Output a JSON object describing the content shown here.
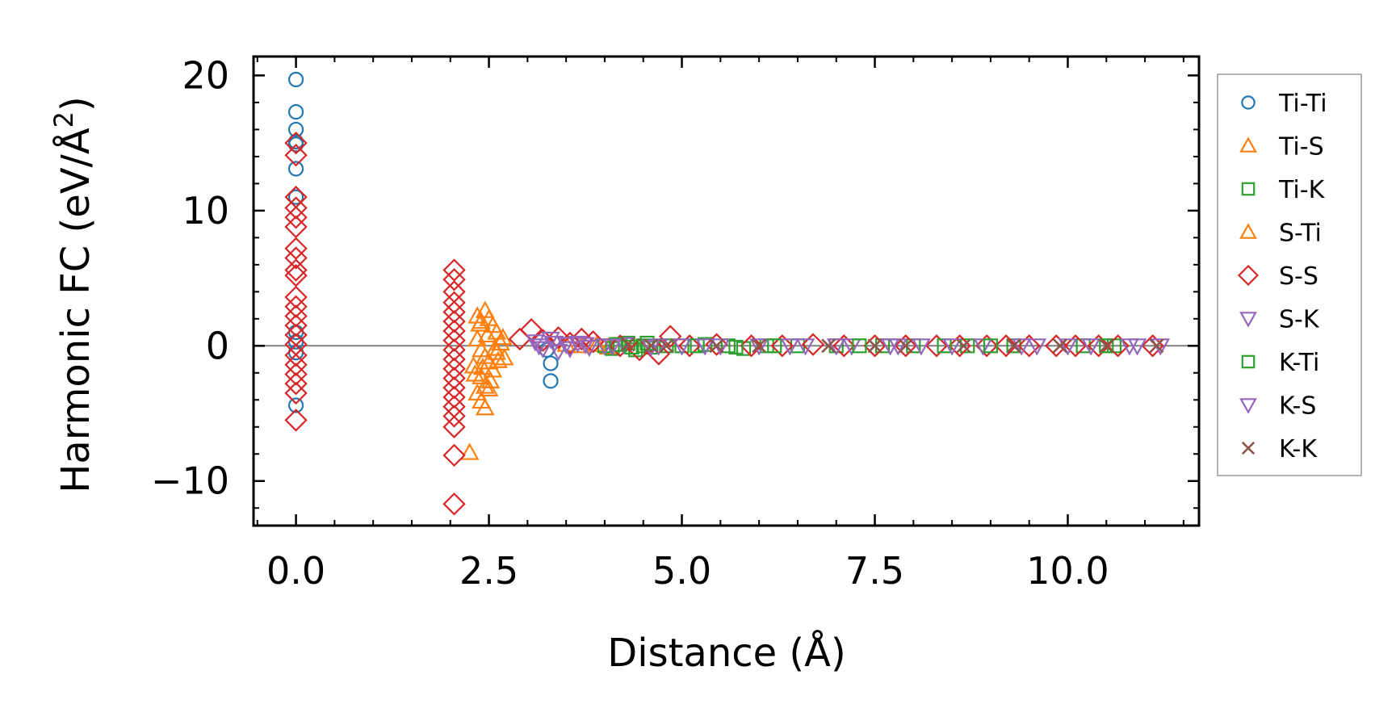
{
  "chart_data": {
    "type": "scatter",
    "xlabel": "Distance (Å)",
    "ylabel_prefix": "Harmonic FC (eV/Å",
    "ylabel_sup": "2",
    "ylabel_suffix": ")",
    "xlim": [
      -0.55,
      11.7
    ],
    "ylim": [
      -13.3,
      21.4
    ],
    "xticks": [
      0.0,
      2.5,
      5.0,
      7.5,
      10.0
    ],
    "xtick_labels": [
      "0.0",
      "2.5",
      "5.0",
      "7.5",
      "10.0"
    ],
    "yticks": [
      -10,
      0,
      10,
      20
    ],
    "ytick_labels": [
      "−10",
      "0",
      "10",
      "20"
    ],
    "zero_line": 0,
    "legend_position": "right, outside",
    "series": [
      {
        "name": "Ti-Ti",
        "marker": "circle",
        "color": "#1f77b4",
        "points": [
          [
            0,
            19.7
          ],
          [
            0,
            17.3
          ],
          [
            0,
            16.0
          ],
          [
            0,
            15.1
          ],
          [
            0,
            14.9
          ],
          [
            0,
            13.1
          ],
          [
            0,
            11.0
          ],
          [
            0,
            1.0
          ],
          [
            0,
            0.3
          ],
          [
            0,
            -0.5
          ],
          [
            0,
            -4.4
          ],
          [
            3.3,
            -1.3
          ],
          [
            3.3,
            -2.6
          ],
          [
            3.25,
            -0.3
          ]
        ]
      },
      {
        "name": "Ti-S",
        "marker": "triangle-up",
        "color": "#ff7f0e",
        "points": [
          [
            2.35,
            2.2
          ],
          [
            2.4,
            1.8
          ],
          [
            2.45,
            2.6
          ],
          [
            2.5,
            2.0
          ],
          [
            2.55,
            1.5
          ],
          [
            2.6,
            1.0
          ],
          [
            2.35,
            0.5
          ],
          [
            2.4,
            -0.3
          ],
          [
            2.45,
            -0.8
          ],
          [
            2.5,
            -1.2
          ],
          [
            2.55,
            -1.8
          ],
          [
            2.4,
            -2.3
          ],
          [
            2.45,
            -3.0
          ],
          [
            2.5,
            -3.2
          ],
          [
            2.35,
            -3.5
          ],
          [
            2.4,
            -4.1
          ],
          [
            2.45,
            -4.6
          ],
          [
            2.3,
            -1.5
          ],
          [
            2.6,
            -0.5
          ],
          [
            2.65,
            0.2
          ],
          [
            2.7,
            -0.9
          ],
          [
            2.25,
            -7.9
          ],
          [
            3.9,
            0.1
          ],
          [
            4.05,
            -0.1
          ]
        ]
      },
      {
        "name": "Ti-K",
        "marker": "square",
        "color": "#2ca02c",
        "points": [
          [
            4.0,
            0.0
          ],
          [
            4.1,
            -0.2
          ],
          [
            4.2,
            0.1
          ],
          [
            4.3,
            0.2
          ],
          [
            4.4,
            -0.3
          ],
          [
            4.5,
            0.0
          ],
          [
            4.6,
            -0.1
          ],
          [
            4.8,
            0.0
          ],
          [
            5.0,
            0.0
          ],
          [
            5.3,
            0.1
          ],
          [
            5.6,
            0.0
          ],
          [
            5.8,
            -0.2
          ],
          [
            6.1,
            0.0
          ],
          [
            6.5,
            0.0
          ],
          [
            7.0,
            0.0
          ],
          [
            7.6,
            0.0
          ],
          [
            8.0,
            0.0
          ],
          [
            8.7,
            0.0
          ],
          [
            9.3,
            0.0
          ],
          [
            10.2,
            0.0
          ],
          [
            10.6,
            0.0
          ]
        ]
      },
      {
        "name": "S-Ti",
        "marker": "triangle-up",
        "color": "#ff7f0e",
        "points": [
          [
            2.38,
            1.6
          ],
          [
            2.48,
            0.8
          ],
          [
            2.58,
            -0.2
          ],
          [
            2.42,
            -1.6
          ],
          [
            2.52,
            -2.6
          ],
          [
            2.62,
            -1.1
          ],
          [
            2.32,
            -2.1
          ],
          [
            2.68,
            0.6
          ],
          [
            3.5,
            0.1
          ],
          [
            3.7,
            0.0
          ]
        ]
      },
      {
        "name": "S-S",
        "marker": "diamond",
        "color": "#d62728",
        "points": [
          [
            0,
            15.0
          ],
          [
            0,
            14.1
          ],
          [
            0,
            11.0
          ],
          [
            0,
            10.2
          ],
          [
            0,
            9.5
          ],
          [
            0,
            8.8
          ],
          [
            0,
            7.2
          ],
          [
            0,
            6.5
          ],
          [
            0,
            5.6
          ],
          [
            0,
            5.2
          ],
          [
            0,
            3.6
          ],
          [
            0,
            2.9
          ],
          [
            0,
            2.2
          ],
          [
            0,
            1.5
          ],
          [
            0,
            0.8
          ],
          [
            0,
            0.1
          ],
          [
            0,
            -0.7
          ],
          [
            0,
            -1.4
          ],
          [
            0,
            -2.1
          ],
          [
            0,
            -2.8
          ],
          [
            0,
            -3.5
          ],
          [
            0,
            -5.5
          ],
          [
            2.05,
            5.6
          ],
          [
            2.05,
            4.9
          ],
          [
            2.05,
            4.0
          ],
          [
            2.05,
            3.2
          ],
          [
            2.05,
            2.5
          ],
          [
            2.05,
            1.8
          ],
          [
            2.05,
            1.1
          ],
          [
            2.05,
            0.4
          ],
          [
            2.05,
            -0.3
          ],
          [
            2.05,
            -1.0
          ],
          [
            2.05,
            -1.7
          ],
          [
            2.05,
            -2.4
          ],
          [
            2.05,
            -3.1
          ],
          [
            2.05,
            -3.8
          ],
          [
            2.05,
            -4.5
          ],
          [
            2.05,
            -5.2
          ],
          [
            2.05,
            -6.0
          ],
          [
            2.05,
            -8.1
          ],
          [
            2.05,
            -11.7
          ],
          [
            2.9,
            0.5
          ],
          [
            3.05,
            1.2
          ],
          [
            3.2,
            0.4
          ],
          [
            3.4,
            0.6
          ],
          [
            3.55,
            0.2
          ],
          [
            3.7,
            0.5
          ],
          [
            3.85,
            0.3
          ],
          [
            4.2,
            0.0
          ],
          [
            4.45,
            -0.3
          ],
          [
            4.7,
            -0.6
          ],
          [
            4.85,
            0.7
          ],
          [
            5.1,
            0.0
          ],
          [
            5.45,
            0.1
          ],
          [
            5.9,
            0.0
          ],
          [
            6.3,
            0.0
          ],
          [
            6.7,
            0.1
          ],
          [
            7.1,
            0.0
          ],
          [
            7.5,
            0.0
          ],
          [
            7.9,
            0.0
          ],
          [
            8.3,
            0.0
          ],
          [
            8.6,
            0.0
          ],
          [
            8.95,
            0.0
          ],
          [
            9.2,
            0.0
          ],
          [
            9.5,
            0.0
          ],
          [
            9.85,
            0.0
          ],
          [
            10.1,
            0.0
          ],
          [
            10.4,
            0.0
          ],
          [
            10.65,
            0.0
          ],
          [
            11.1,
            0.0
          ]
        ]
      },
      {
        "name": "S-K",
        "marker": "triangle-down",
        "color": "#9467bd",
        "points": [
          [
            3.1,
            0.3
          ],
          [
            3.2,
            -0.2
          ],
          [
            3.3,
            0.5
          ],
          [
            3.4,
            -0.4
          ],
          [
            3.5,
            0.1
          ],
          [
            3.65,
            0.2
          ],
          [
            3.8,
            -0.1
          ],
          [
            4.0,
            0.0
          ],
          [
            4.25,
            0.1
          ],
          [
            4.6,
            -0.1
          ],
          [
            5.0,
            0.0
          ],
          [
            5.5,
            0.0
          ],
          [
            6.0,
            0.0
          ],
          [
            6.6,
            0.0
          ],
          [
            7.2,
            0.0
          ],
          [
            7.7,
            0.0
          ],
          [
            8.1,
            0.0
          ],
          [
            8.9,
            0.0
          ],
          [
            9.6,
            0.0
          ],
          [
            10.3,
            0.0
          ],
          [
            10.9,
            0.0
          ]
        ]
      },
      {
        "name": "K-Ti",
        "marker": "square",
        "color": "#2ca02c",
        "points": [
          [
            4.15,
            0.1
          ],
          [
            4.35,
            -0.1
          ],
          [
            4.55,
            0.2
          ],
          [
            5.2,
            0.0
          ],
          [
            5.7,
            -0.1
          ],
          [
            6.2,
            0.0
          ],
          [
            7.3,
            0.0
          ],
          [
            8.4,
            0.0
          ],
          [
            9.0,
            0.0
          ],
          [
            10.5,
            0.0
          ]
        ]
      },
      {
        "name": "K-S",
        "marker": "triangle-down",
        "color": "#9467bd",
        "points": [
          [
            3.15,
            0.0
          ],
          [
            3.35,
            0.2
          ],
          [
            3.55,
            -0.2
          ],
          [
            3.75,
            0.1
          ],
          [
            4.1,
            0.0
          ],
          [
            4.7,
            0.0
          ],
          [
            5.3,
            0.0
          ],
          [
            6.4,
            0.0
          ],
          [
            7.0,
            0.0
          ],
          [
            7.8,
            0.0
          ],
          [
            8.5,
            0.0
          ],
          [
            9.4,
            0.0
          ],
          [
            10.0,
            0.0
          ],
          [
            10.8,
            0.0
          ],
          [
            11.2,
            0.0
          ]
        ]
      },
      {
        "name": "K-K",
        "marker": "x",
        "color": "#8c564b",
        "points": [
          [
            4.3,
            0.1
          ],
          [
            4.6,
            0.0
          ],
          [
            4.8,
            0.0
          ],
          [
            5.45,
            0.0
          ],
          [
            6.0,
            0.0
          ],
          [
            6.9,
            0.0
          ],
          [
            7.5,
            0.0
          ],
          [
            7.9,
            0.0
          ],
          [
            8.65,
            0.0
          ],
          [
            9.3,
            0.0
          ],
          [
            9.9,
            0.0
          ],
          [
            10.5,
            0.0
          ],
          [
            11.15,
            0.0
          ]
        ]
      }
    ]
  }
}
